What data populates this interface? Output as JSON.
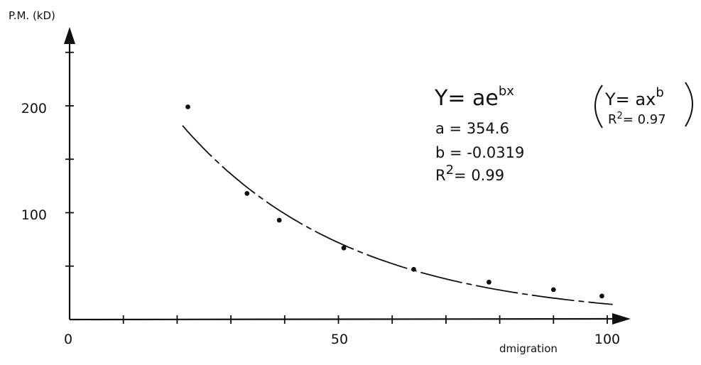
{
  "chart_data": {
    "type": "scatter",
    "ylabel": "P.M. (kD)",
    "xlabel": "dmigration",
    "x_ticks": [
      "0",
      "50",
      "100"
    ],
    "y_ticks": [
      "100",
      "200"
    ],
    "xlim": [
      0,
      105
    ],
    "ylim": [
      0,
      290
    ],
    "grid": false,
    "points": [
      {
        "x": 22,
        "y": 199
      },
      {
        "x": 33,
        "y": 118
      },
      {
        "x": 39,
        "y": 93
      },
      {
        "x": 51,
        "y": 67
      },
      {
        "x": 64,
        "y": 47
      },
      {
        "x": 78,
        "y": 35
      },
      {
        "x": 90,
        "y": 28
      },
      {
        "x": 99,
        "y": 22
      }
    ],
    "fit": {
      "model": "exponential",
      "a": 354.6,
      "b": -0.0319,
      "x_range": [
        21,
        101
      ]
    },
    "annotations": {
      "main_lhs": "Y= a",
      "main_base": "e",
      "main_exp": "bx",
      "a_line": "a = 354.6",
      "b_line": "b = -0.0319",
      "r2_line_lhs": "R",
      "r2_line_sup": "2",
      "r2_line_rhs": "= 0.99",
      "alt_lhs": "Y= ax",
      "alt_exp": "b",
      "alt_r2_lhs": "R",
      "alt_r2_sup": "2",
      "alt_r2_rhs": "= 0.97"
    }
  }
}
